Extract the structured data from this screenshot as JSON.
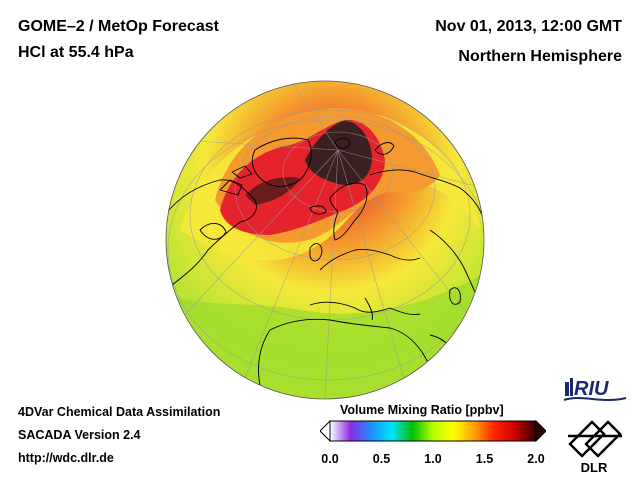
{
  "header": {
    "title_line1": "GOME–2 / MetOp Forecast",
    "title_line2": "HCl at 55.4 hPa",
    "datetime": "Nov 01, 2013, 12:00 GMT",
    "region": "Northern Hemisphere"
  },
  "footer": {
    "line1": "4DVar Chemical Data Assimilation",
    "line2": "SACADA Version 2.4",
    "line3": "http://wdc.dlr.de"
  },
  "legend": {
    "title": "Volume Mixing Ratio [ppbv]",
    "ticks": [
      "0.0",
      "0.5",
      "1.0",
      "1.5",
      "2.0"
    ],
    "tick_values": [
      0.0,
      0.5,
      1.0,
      1.5,
      2.0
    ],
    "range": [
      0.0,
      2.0
    ],
    "colors": [
      "#ffffff",
      "#8a2be2",
      "#1e90ff",
      "#00e5ff",
      "#00c000",
      "#b8ff00",
      "#ffff00",
      "#ffa000",
      "#ff2000",
      "#cc0000",
      "#300000"
    ]
  },
  "logos": {
    "riu": "RIU",
    "dlr": "DLR"
  },
  "map": {
    "projection": "orthographic",
    "field": "HCl volume mixing ratio",
    "colors": {
      "background_low": "#e2ef3c",
      "mid_latitude": "#b8e434",
      "yellow_band": "#f6e838",
      "orange": "#f49a2e",
      "red": "#e5232d",
      "dark_core": "#3a2020",
      "coastline": "#000000",
      "graticule": "#9a9a9a"
    }
  }
}
